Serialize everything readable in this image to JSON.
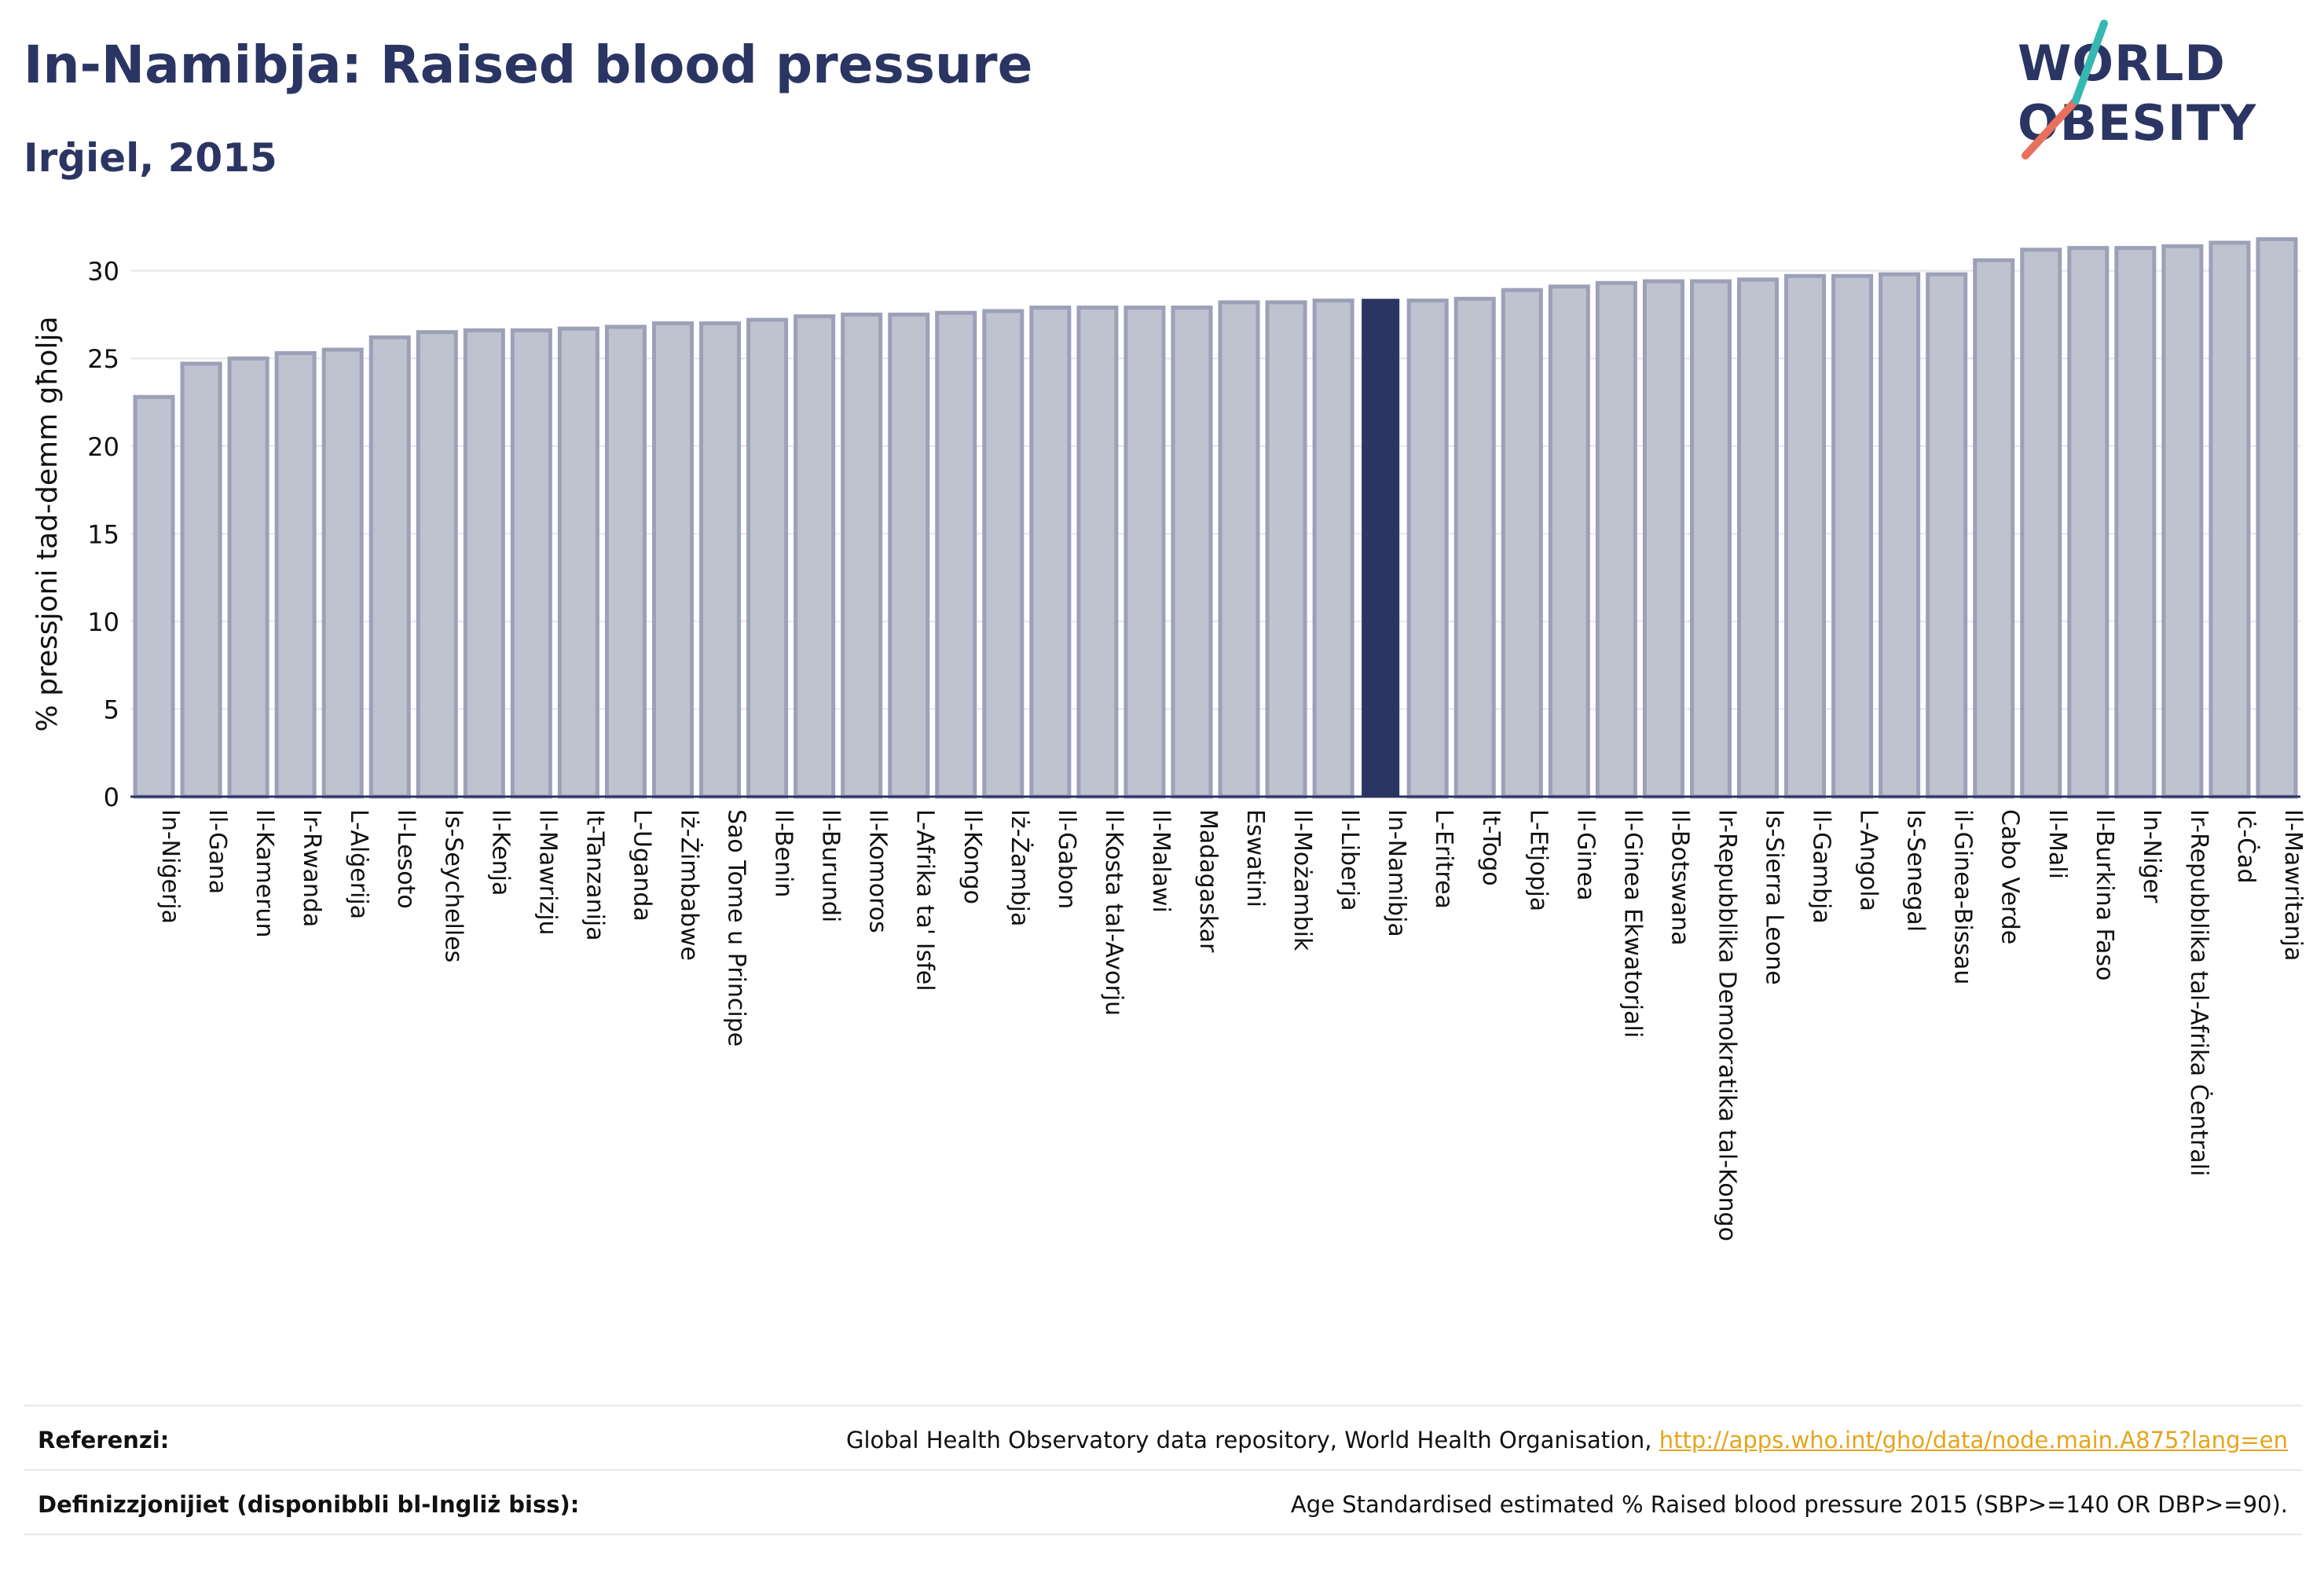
{
  "header": {
    "title": "In-Namibja: Raised blood pressure",
    "subtitle": "Irġiel, 2015"
  },
  "logo": {
    "line1": "WORLD",
    "line2": "OBESITY",
    "accent_teal": "#36b8b2",
    "accent_red": "#e8705d",
    "text_color": "#2b3563"
  },
  "chart_data": {
    "type": "bar",
    "ylabel": "% pressjoni tad-demm għolja",
    "ylim": [
      0,
      32
    ],
    "yticks": [
      0,
      5,
      10,
      15,
      20,
      25,
      30
    ],
    "grid": true,
    "highlight": "In-Namibja",
    "colors": {
      "bar_fill": "#bfc2cf",
      "bar_stroke": "#9ca1b8",
      "highlight_fill": "#2b3563",
      "grid": "#e6e6ec",
      "axis": "#2b3563"
    },
    "categories": [
      "In-Niġerja",
      "Il-Gana",
      "Il-Kamerun",
      "Ir-Rwanda",
      "L-Alġerija",
      "Il-Lesoto",
      "Is-Seychelles",
      "Il-Kenja",
      "Il-Mawrizju",
      "It-Tanzanija",
      "L-Uganda",
      "Iż-Żimbabwe",
      "Sao Tome u Principe",
      "Il-Benin",
      "Il-Burundi",
      "Il-Komoros",
      "L-Afrika ta' Isfel",
      "Il-Kongo",
      "Iż-Żambja",
      "Il-Gabon",
      "Il-Kosta tal-Avorju",
      "Il-Malawi",
      "Madagaskar",
      "Eswatini",
      "Il-Możambik",
      "Il-Liberja",
      "In-Namibja",
      "L-Eritrea",
      "It-Togo",
      "L-Etjopja",
      "Il-Ginea",
      "Il-Ginea Ekwatorjali",
      "Il-Botswana",
      "Ir-Repubblika Demokratika tal-Kongo",
      "Is-Sierra Leone",
      "Il-Gambja",
      "L-Angola",
      "Is-Senegal",
      "il-Ginea-Bissau",
      "Cabo Verde",
      "Il-Mali",
      "Il-Burkina Faso",
      "In-Niġer",
      "Ir-Repubblika tal-Afrika Ċentrali",
      "Iċ-Ċad",
      "Il-Mawritanja"
    ],
    "values": [
      22.8,
      24.7,
      25.0,
      25.3,
      25.5,
      26.2,
      26.5,
      26.6,
      26.6,
      26.7,
      26.8,
      27.0,
      27.0,
      27.2,
      27.4,
      27.5,
      27.5,
      27.6,
      27.7,
      27.9,
      27.9,
      27.9,
      27.9,
      28.2,
      28.2,
      28.3,
      28.4,
      28.3,
      28.4,
      28.9,
      29.1,
      29.3,
      29.4,
      29.4,
      29.5,
      29.7,
      29.7,
      29.8,
      29.8,
      30.6,
      31.2,
      31.3,
      31.3,
      31.4,
      31.6,
      31.8
    ]
  },
  "footer": {
    "references_label": "Referenzi:",
    "references_text": "Global Health Observatory data repository, World Health Organisation,",
    "references_link": "http://apps.who.int/gho/data/node.main.A875?lang=en",
    "definitions_label": "Definizzjonijiet (disponibbli bl-Ingliż biss):",
    "definitions_text": "Age Standardised estimated % Raised blood pressure 2015 (SBP>=140 OR DBP>=90)."
  }
}
